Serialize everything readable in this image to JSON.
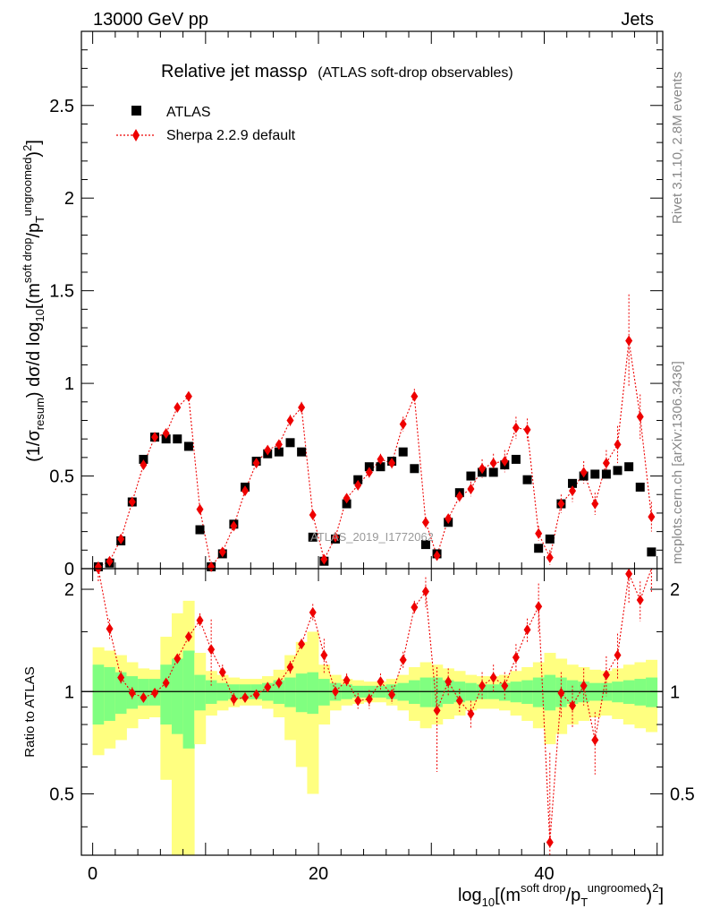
{
  "header": {
    "left": "13000 GeV pp",
    "right": "Jets"
  },
  "side_labels": {
    "rivet": "Rivet 3.1.10,  2.8M events",
    "mcplots": "mcplots.cern.ch [arXiv:1306.3436]"
  },
  "watermark": "ATLAS_2019_I1772062",
  "chart_data": {
    "type": "scatter",
    "title": "Relative jet massρ",
    "subtitle": "(ATLAS soft-drop observables)",
    "legend_position": "top-left",
    "xlabel": "log₁₀[(m^soft drop/p_T^ungroomed)²]",
    "ylabel": "(1/σ_resum) dσ/d log₁₀[(m^soft drop/p_T^ungroomed)²]",
    "ratio_ylabel": "Ratio to ATLAS",
    "xlim": [
      -1,
      50.5
    ],
    "ylim": [
      0,
      2.9
    ],
    "ratio_ylim": [
      0.33,
      2.3
    ],
    "x_ticks": [
      "0",
      "20",
      "40"
    ],
    "y_ticks": [
      "0",
      "0.5",
      "1",
      "1.5",
      "2",
      "2.5"
    ],
    "ratio_ticks": [
      "0.5",
      "1",
      "2"
    ],
    "x": [
      0.5,
      1.5,
      2.5,
      3.5,
      4.5,
      5.5,
      6.5,
      7.5,
      8.5,
      9.5,
      10.5,
      11.5,
      12.5,
      13.5,
      14.5,
      15.5,
      16.5,
      17.5,
      18.5,
      19.5,
      20.5,
      21.5,
      22.5,
      23.5,
      24.5,
      25.5,
      26.5,
      27.5,
      28.5,
      29.5,
      30.5,
      31.5,
      32.5,
      33.5,
      34.5,
      35.5,
      36.5,
      37.5,
      38.5,
      39.5,
      40.5,
      41.5,
      42.5,
      43.5,
      44.5,
      45.5,
      46.5,
      47.5,
      48.5,
      49.5
    ],
    "series": [
      {
        "name": "ATLAS",
        "values": [
          0.01,
          0.03,
          0.15,
          0.36,
          0.59,
          0.71,
          0.7,
          0.7,
          0.66,
          0.21,
          0.01,
          0.08,
          0.24,
          0.44,
          0.58,
          0.62,
          0.63,
          0.68,
          0.63,
          0.17,
          0.04,
          0.16,
          0.35,
          0.48,
          0.55,
          0.55,
          0.58,
          0.63,
          0.54,
          0.13,
          0.08,
          0.25,
          0.41,
          0.5,
          0.52,
          0.52,
          0.56,
          0.59,
          0.48,
          0.11,
          0.16,
          0.35,
          0.46,
          0.5,
          0.51,
          0.51,
          0.53,
          0.55,
          0.44,
          0.09
        ],
        "ratio_band_inner": [
          0.2,
          0.18,
          0.14,
          0.11,
          0.09,
          0.09,
          0.2,
          0.25,
          0.32,
          0.12,
          0.08,
          0.06,
          0.05,
          0.05,
          0.05,
          0.06,
          0.08,
          0.1,
          0.13,
          0.14,
          0.09,
          0.06,
          0.05,
          0.04,
          0.04,
          0.04,
          0.05,
          0.06,
          0.08,
          0.1,
          0.1,
          0.08,
          0.07,
          0.06,
          0.05,
          0.05,
          0.06,
          0.07,
          0.08,
          0.1,
          0.12,
          0.1,
          0.08,
          0.07,
          0.06,
          0.06,
          0.07,
          0.08,
          0.09,
          0.1
        ],
        "ratio_band_outer": [
          0.35,
          0.32,
          0.28,
          0.22,
          0.17,
          0.16,
          0.45,
          0.7,
          0.85,
          0.3,
          0.15,
          0.12,
          0.1,
          0.09,
          0.09,
          0.11,
          0.16,
          0.28,
          0.4,
          0.5,
          0.2,
          0.12,
          0.09,
          0.08,
          0.07,
          0.07,
          0.09,
          0.12,
          0.18,
          0.22,
          0.2,
          0.17,
          0.15,
          0.12,
          0.11,
          0.11,
          0.12,
          0.15,
          0.18,
          0.22,
          0.3,
          0.25,
          0.2,
          0.18,
          0.16,
          0.15,
          0.17,
          0.2,
          0.22,
          0.24
        ]
      },
      {
        "name": "Sherpa 2.2.9 default",
        "color": "#ee0000",
        "values": [
          0.01,
          0.04,
          0.16,
          0.36,
          0.56,
          0.71,
          0.73,
          0.87,
          0.93,
          0.32,
          0.01,
          0.09,
          0.23,
          0.42,
          0.57,
          0.64,
          0.67,
          0.8,
          0.87,
          0.29,
          0.05,
          0.17,
          0.38,
          0.45,
          0.52,
          0.59,
          0.57,
          0.78,
          0.93,
          0.25,
          0.07,
          0.27,
          0.39,
          0.43,
          0.54,
          0.57,
          0.58,
          0.76,
          0.75,
          0.19,
          0.06,
          0.35,
          0.42,
          0.52,
          0.35,
          0.57,
          0.67,
          1.23,
          0.82,
          0.28
        ],
        "errors": [
          0.01,
          0.01,
          0.01,
          0.02,
          0.02,
          0.02,
          0.02,
          0.02,
          0.02,
          0.02,
          0.01,
          0.01,
          0.01,
          0.02,
          0.02,
          0.02,
          0.02,
          0.03,
          0.03,
          0.02,
          0.01,
          0.01,
          0.02,
          0.02,
          0.03,
          0.03,
          0.03,
          0.04,
          0.04,
          0.03,
          0.02,
          0.02,
          0.03,
          0.04,
          0.05,
          0.05,
          0.06,
          0.06,
          0.06,
          0.04,
          0.04,
          0.05,
          0.06,
          0.06,
          0.06,
          0.07,
          0.1,
          0.25,
          0.12,
          0.08
        ],
        "ratio": [
          2.3,
          1.53,
          1.1,
          0.99,
          0.96,
          0.99,
          1.06,
          1.25,
          1.45,
          1.62,
          1.33,
          1.14,
          0.95,
          0.96,
          0.98,
          1.03,
          1.06,
          1.18,
          1.38,
          1.71,
          1.28,
          1.0,
          1.08,
          0.94,
          0.95,
          1.07,
          0.98,
          1.24,
          1.77,
          1.97,
          0.88,
          1.07,
          0.94,
          0.86,
          1.04,
          1.1,
          1.04,
          1.26,
          1.52,
          1.78,
          0.36,
          0.99,
          0.91,
          1.04,
          0.72,
          1.12,
          1.28,
          2.22,
          1.86,
          2.45
        ],
        "ratio_err": [
          0.2,
          0.1,
          0.05,
          0.04,
          0.03,
          0.03,
          0.03,
          0.04,
          0.05,
          0.08,
          0.3,
          0.06,
          0.04,
          0.03,
          0.03,
          0.03,
          0.04,
          0.05,
          0.05,
          0.1,
          0.15,
          0.06,
          0.05,
          0.05,
          0.06,
          0.06,
          0.06,
          0.07,
          0.08,
          0.2,
          0.3,
          0.1,
          0.08,
          0.08,
          0.1,
          0.1,
          0.1,
          0.12,
          0.12,
          0.3,
          0.3,
          0.15,
          0.13,
          0.13,
          0.15,
          0.15,
          0.2,
          0.4,
          0.25,
          0.5
        ]
      }
    ]
  }
}
